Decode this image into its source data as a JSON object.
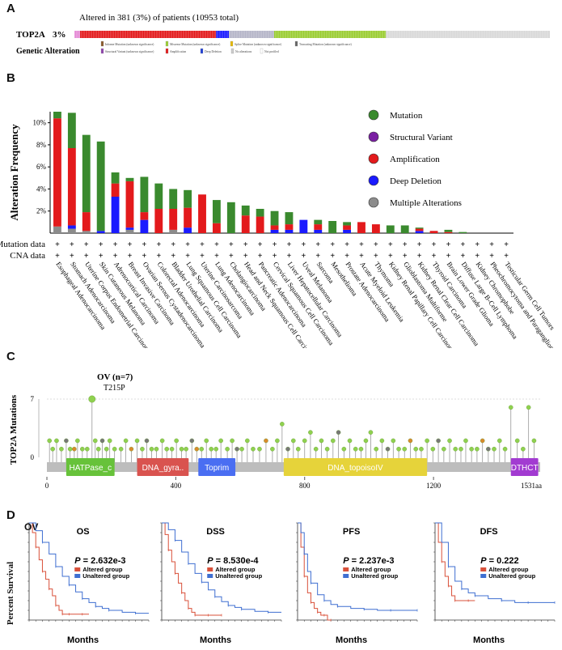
{
  "panels": {
    "a": "A",
    "b": "B",
    "c": "C",
    "d": "D"
  },
  "oncoprint": {
    "altered_text": "Altered in 381 (3%) of patients (10953 total)",
    "gene": "TOP2A",
    "pct": "3%",
    "legend_title": "Genetic Alteration",
    "legend_items": [
      {
        "label": "Inframe Mutation (unknown significance)",
        "color": "#8b5a2b"
      },
      {
        "label": "Missense Mutation (unknown significance)",
        "color": "#9acd32"
      },
      {
        "label": "Splice Mutation (unknown significance)",
        "color": "#e6b800"
      },
      {
        "label": "Truncating Mutation (unknown significance)",
        "color": "#666666"
      },
      {
        "label": "Structural Variant (unknown significance)",
        "color": "#8e44ad"
      },
      {
        "label": "Amplification",
        "color": "#e31a1c"
      },
      {
        "label": "Deep Deletion",
        "color": "#1f3fd6"
      },
      {
        "label": "No alterations",
        "color": "#cccccc"
      },
      {
        "label": "Not profiled",
        "color": "#ffffff"
      }
    ]
  },
  "colors": {
    "mutation": "#3a8a2e",
    "sv": "#7a1fa2",
    "amp": "#e31a1c",
    "del": "#1a1aff",
    "multi": "#8c8c8c",
    "lollipop": "#8fd14f",
    "altered": "#d9503a",
    "unaltered": "#3f6fd1"
  },
  "chart_data": [
    {
      "type": "bar",
      "title": "",
      "ylabel": "Alteration Frequency",
      "ylim": [
        0,
        11
      ],
      "yticks": [
        "2%",
        "4%",
        "6%",
        "8%",
        "10%"
      ],
      "row_labels": [
        "Mutation data",
        "CNA data"
      ],
      "marker": "+",
      "legend": [
        "Mutation",
        "Structural Variant",
        "Amplification",
        "Deep Deletion",
        "Multiple Alterations"
      ],
      "categories": [
        "Esophageal Adenocarcinoma",
        "Stomach Adenocarcinoma",
        "Uterine Corpus Endometrial Carcinoma",
        "Skin Cutaneous Melanoma",
        "Adrenocortical Carcinoma",
        "Breast Invasive Carcinoma",
        "Ovarian Serous Cystadenocarcinoma",
        "Colorectal Adenocarcinoma",
        "Bladder Urothelial Carcinoma",
        "Lung Squamous Cell Carcinoma",
        "Uterine Carcinosarcoma",
        "Lung Adenocarcinoma",
        "Cholangiocarcinoma",
        "Head and Neck Squamous Cell Carcinoma",
        "Pancreatic Adenocarcinoma",
        "Cervical Squamous Cell Carcinoma",
        "Liver Hepatocellular Carcinoma",
        "Uveal Melanoma",
        "Sarcoma",
        "Mesothelioma",
        "Prostate Adenocarcinoma",
        "Acute Myeloid Leukemia",
        "Thymoma",
        "Kidney Renal Papillary Cell Carcinoma",
        "Glioblastoma Multiforme",
        "Kidney Renal Clear Cell Carcinoma",
        "Thyroid Carcinoma",
        "Brain Lower Grade Glioma",
        "Diffuse Large B-Cell Lymphoma",
        "Kidney Chromophobe",
        "Pheochromocytoma and Paraganglioma",
        "Testicular Germ Cell Tumors"
      ],
      "series": [
        {
          "name": "Multiple Alterations",
          "values": [
            0.6,
            0.4,
            0.2,
            0,
            0,
            0.3,
            0,
            0,
            0.3,
            0,
            0,
            0,
            0,
            0,
            0,
            0,
            0,
            0,
            0,
            0,
            0,
            0,
            0,
            0,
            0,
            0,
            0,
            0,
            0,
            0,
            0,
            0
          ]
        },
        {
          "name": "Deep Deletion",
          "values": [
            0,
            0.3,
            0,
            0.2,
            3.3,
            0.2,
            1.2,
            0,
            0,
            0.5,
            0,
            0,
            0,
            0,
            0,
            0.3,
            0.3,
            1.2,
            0.3,
            0,
            0.3,
            0,
            0,
            0,
            0,
            0.2,
            0,
            0,
            0,
            0,
            0,
            0
          ]
        },
        {
          "name": "Structural Variant",
          "values": [
            0,
            0,
            0,
            0,
            0,
            0,
            0,
            0,
            0,
            0,
            0,
            0,
            0,
            0,
            0,
            0,
            0,
            0,
            0,
            0,
            0,
            0,
            0,
            0,
            0,
            0,
            0,
            0,
            0,
            0,
            0,
            0
          ]
        },
        {
          "name": "Amplification",
          "values": [
            9.8,
            7.0,
            1.7,
            0,
            1.2,
            4.2,
            0.7,
            2.2,
            1.9,
            1.8,
            3.5,
            0.9,
            0,
            1.6,
            1.5,
            0.4,
            0.5,
            0,
            0.5,
            0,
            0.4,
            1.0,
            0.8,
            0,
            0,
            0.2,
            0.2,
            0.1,
            0,
            0,
            0,
            0
          ]
        },
        {
          "name": "Mutation",
          "values": [
            0.6,
            3.2,
            7.0,
            8.1,
            1.0,
            0.3,
            3.2,
            2.3,
            1.8,
            1.6,
            0,
            2.1,
            2.8,
            0.9,
            0.7,
            1.3,
            1.1,
            0,
            0.4,
            1.1,
            0.3,
            0,
            0,
            0.7,
            0.7,
            0.1,
            0,
            0.2,
            0.1,
            0,
            0,
            0
          ]
        }
      ]
    },
    {
      "type": "scatter",
      "title": "OV (n=7)",
      "annotation": "T215P",
      "ylabel": "TOP2A Mutations",
      "xlim": [
        0,
        1531
      ],
      "ylim": [
        0,
        7
      ],
      "xticks": [
        "0",
        "400",
        "800",
        "1200"
      ],
      "xend_label": "1531aa",
      "ytick_labels": [
        "0",
        "7"
      ],
      "domains": [
        {
          "name": "HATPase_c",
          "start": 60,
          "end": 210,
          "color": "#67c23a"
        },
        {
          "name": "DNA_gyra..",
          "start": 280,
          "end": 440,
          "color": "#d9534f"
        },
        {
          "name": "Toprim",
          "start": 470,
          "end": 585,
          "color": "#4a6ef2"
        },
        {
          "name": "DNA_topoisoIV",
          "start": 735,
          "end": 1180,
          "color": "#e6d33a"
        },
        {
          "name": "DTHCT",
          "start": 1440,
          "end": 1525,
          "color": "#a23bd1"
        }
      ],
      "x": [
        8,
        18,
        30,
        45,
        60,
        72,
        85,
        95,
        110,
        125,
        140,
        150,
        160,
        172,
        185,
        195,
        210,
        230,
        245,
        262,
        280,
        296,
        310,
        325,
        340,
        358,
        372,
        388,
        402,
        418,
        432,
        450,
        465,
        480,
        495,
        510,
        525,
        540,
        560,
        575,
        590,
        605,
        622,
        640,
        660,
        680,
        700,
        715,
        730,
        748,
        765,
        780,
        800,
        818,
        835,
        852,
        870,
        888,
        905,
        922,
        940,
        958,
        975,
        990,
        1005,
        1022,
        1040,
        1058,
        1075,
        1092,
        1110,
        1128,
        1145,
        1162,
        1180,
        1198,
        1215,
        1232,
        1250,
        1268,
        1285,
        1300,
        1318,
        1335,
        1352,
        1370,
        1388,
        1405,
        1422,
        1440,
        1460,
        1478,
        1495,
        1512
      ],
      "y": [
        2,
        1,
        2,
        1,
        2,
        1,
        1,
        2,
        1,
        1,
        7,
        2,
        1,
        2,
        1,
        2,
        1,
        1,
        2,
        1,
        2,
        1,
        2,
        1,
        1,
        2,
        1,
        1,
        2,
        1,
        1,
        2,
        1,
        1,
        2,
        1,
        1,
        2,
        1,
        2,
        1,
        1,
        2,
        1,
        1,
        2,
        1,
        2,
        4,
        1,
        2,
        1,
        2,
        3,
        1,
        2,
        1,
        2,
        3,
        1,
        2,
        1,
        1,
        2,
        3,
        1,
        2,
        1,
        2,
        1,
        1,
        2,
        1,
        1,
        2,
        1,
        2,
        1,
        2,
        1,
        1,
        2,
        1,
        1,
        2,
        1,
        1,
        2,
        1,
        6,
        2,
        1,
        6,
        2
      ]
    },
    {
      "type": "line",
      "title": "OS",
      "pvalue": "= 2.632e-3",
      "ylabel": "Percent Survival",
      "xlabel": "Months",
      "xlim": [
        0,
        180
      ],
      "ylim": [
        0,
        100
      ],
      "legend": [
        "Altered group",
        "Unaltered group"
      ],
      "series": [
        {
          "name": "Altered group",
          "x": [
            0,
            5,
            10,
            15,
            20,
            25,
            30,
            35,
            40,
            45,
            50,
            55,
            60,
            70,
            80,
            90
          ],
          "values": [
            100,
            90,
            75,
            62,
            50,
            42,
            32,
            25,
            15,
            10,
            6,
            6,
            6,
            6,
            6,
            6
          ]
        },
        {
          "name": "Unaltered group",
          "x": [
            0,
            10,
            20,
            30,
            40,
            50,
            60,
            70,
            80,
            90,
            100,
            110,
            120,
            140,
            160,
            180
          ],
          "values": [
            100,
            92,
            80,
            68,
            55,
            45,
            36,
            29,
            22,
            18,
            14,
            12,
            10,
            8,
            7,
            7
          ]
        }
      ]
    },
    {
      "type": "line",
      "title": "DSS",
      "pvalue": "= 8.530e-4",
      "ylabel": "",
      "xlabel": "Months",
      "xlim": [
        0,
        180
      ],
      "ylim": [
        0,
        100
      ],
      "legend": [
        "Altered group",
        "Unaltered group"
      ],
      "series": [
        {
          "name": "Altered group",
          "x": [
            0,
            5,
            10,
            15,
            20,
            25,
            30,
            35,
            40,
            45,
            50,
            60,
            70,
            80,
            90
          ],
          "values": [
            100,
            88,
            72,
            60,
            48,
            38,
            28,
            20,
            12,
            8,
            5,
            5,
            5,
            5,
            5
          ]
        },
        {
          "name": "Unaltered group",
          "x": [
            0,
            10,
            20,
            30,
            40,
            50,
            60,
            70,
            80,
            90,
            100,
            110,
            120,
            140,
            160,
            180
          ],
          "values": [
            100,
            93,
            82,
            70,
            58,
            48,
            39,
            31,
            24,
            19,
            15,
            13,
            11,
            9,
            8,
            8
          ]
        }
      ]
    },
    {
      "type": "line",
      "title": "PFS",
      "pvalue": "= 2.237e-3",
      "ylabel": "",
      "xlabel": "Months",
      "xlim": [
        0,
        180
      ],
      "ylim": [
        0,
        100
      ],
      "legend": [
        "Altered group",
        "Unaltered group"
      ],
      "series": [
        {
          "name": "Altered group",
          "x": [
            0,
            5,
            10,
            15,
            20,
            25,
            30,
            35,
            40,
            45,
            50
          ],
          "values": [
            100,
            75,
            45,
            28,
            18,
            12,
            8,
            5,
            5,
            0,
            0
          ]
        },
        {
          "name": "Unaltered group",
          "x": [
            0,
            5,
            10,
            15,
            20,
            30,
            40,
            50,
            60,
            80,
            100,
            120,
            140,
            160,
            180
          ],
          "values": [
            100,
            90,
            68,
            50,
            38,
            26,
            20,
            16,
            14,
            12,
            11,
            10,
            10,
            10,
            10
          ]
        }
      ]
    },
    {
      "type": "line",
      "title": "DFS",
      "pvalue": "= 0.222",
      "ylabel": "",
      "xlabel": "Months",
      "xlim": [
        0,
        180
      ],
      "ylim": [
        0,
        100
      ],
      "legend": [
        "Altered group",
        "Unaltered group"
      ],
      "series": [
        {
          "name": "Altered group",
          "x": [
            0,
            5,
            10,
            15,
            20,
            25,
            30,
            40,
            50,
            60
          ],
          "values": [
            100,
            80,
            60,
            45,
            35,
            25,
            20,
            20,
            20,
            20
          ]
        },
        {
          "name": "Unaltered group",
          "x": [
            0,
            10,
            20,
            30,
            40,
            50,
            60,
            80,
            100,
            120,
            140,
            160,
            180
          ],
          "values": [
            100,
            80,
            55,
            40,
            32,
            28,
            25,
            22,
            20,
            18,
            18,
            18,
            18
          ]
        }
      ]
    }
  ],
  "survival": {
    "group_label": "OV",
    "p_label": "P"
  }
}
